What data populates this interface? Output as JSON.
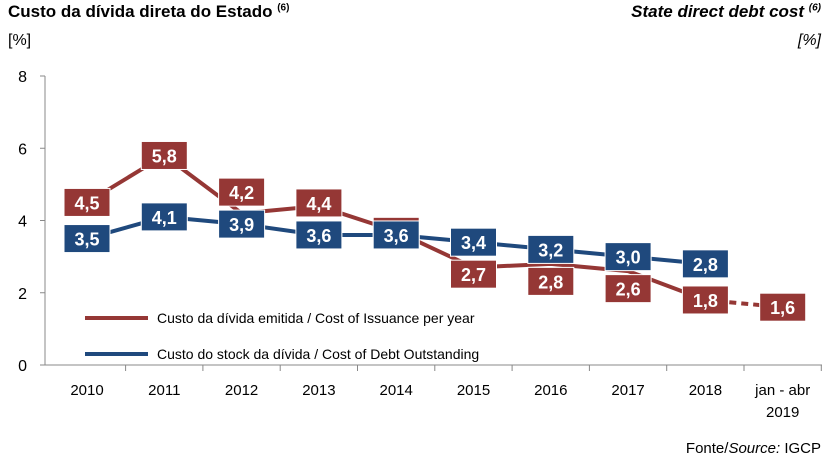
{
  "title_pt": "Custo da dívida direta do Estado",
  "title_en": "State direct debt cost",
  "note_ref": "(6)",
  "unit_pt": "[%]",
  "unit_en": "[%]",
  "source_prefix": "Fonte/",
  "source_italic": "Source:",
  "source_name": " IGCP",
  "chart_data": {
    "type": "line",
    "categories": [
      "2010",
      "2011",
      "2012",
      "2013",
      "2014",
      "2015",
      "2016",
      "2017",
      "2018",
      "jan - abr 2019"
    ],
    "ylim": [
      0,
      8
    ],
    "yticks": [
      0,
      2,
      4,
      6,
      8
    ],
    "grid": false,
    "legend_position": "bottom-left",
    "series": [
      {
        "name": "Custo da dívida emitida / Cost of Issuance per year",
        "color": "#953735",
        "values": [
          4.5,
          5.8,
          4.2,
          4.4,
          3.7,
          2.7,
          2.8,
          2.6,
          1.8,
          1.6
        ],
        "labels": [
          "4,5",
          "5,8",
          "4,2",
          "4,4",
          "",
          "2,7",
          "2,8",
          "2,6",
          "1,8",
          "1,6"
        ],
        "dashed_last_segment": true
      },
      {
        "name": "Custo do stock da dívida / Cost of Debt Outstanding",
        "color": "#1f497d",
        "values": [
          3.5,
          4.1,
          3.9,
          3.6,
          3.6,
          3.4,
          3.2,
          3.0,
          2.8,
          null
        ],
        "labels": [
          "3,5",
          "4,1",
          "3,9",
          "3,6",
          "3,6",
          "3,4",
          "3,2",
          "3,0",
          "2,8",
          ""
        ]
      }
    ]
  }
}
